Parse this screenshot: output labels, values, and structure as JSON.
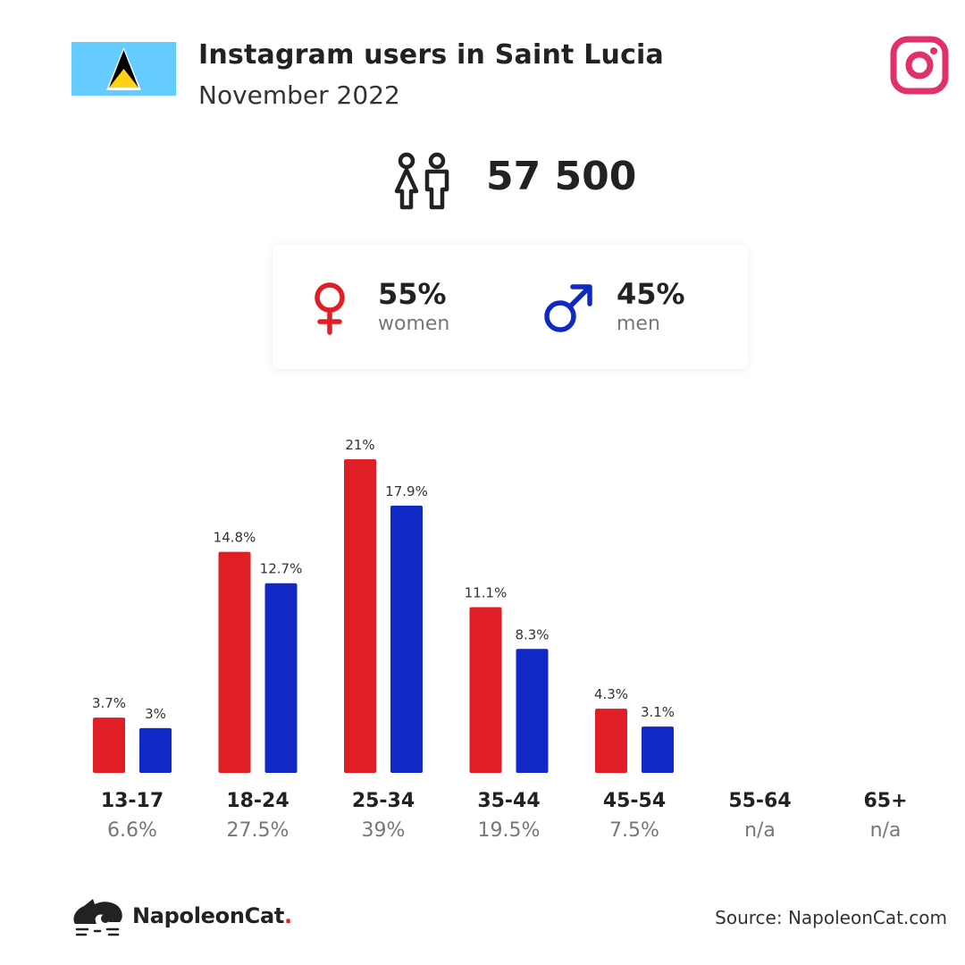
{
  "header": {
    "title": "Instagram users in Saint Lucia",
    "subtitle": "November 2022"
  },
  "total": "57 500",
  "gender": {
    "women_pct": "55%",
    "women_label": "women",
    "men_pct": "45%",
    "men_label": "men"
  },
  "colors": {
    "women": "#e01e26",
    "men": "#1029c4",
    "instagram": "#e1306c"
  },
  "chart_data": {
    "type": "bar",
    "categories": [
      "13-17",
      "18-24",
      "25-34",
      "35-44",
      "45-54",
      "55-64",
      "65+"
    ],
    "category_totals": [
      "6.6%",
      "27.5%",
      "39%",
      "19.5%",
      "7.5%",
      "n/a",
      "n/a"
    ],
    "series": [
      {
        "values": [
          3.7,
          14.8,
          21,
          11.1,
          4.3,
          null,
          null
        ],
        "labels": [
          "3.7%",
          "14.8%",
          "21%",
          "11.1%",
          "4.3%",
          "",
          ""
        ]
      },
      {
        "values": [
          3,
          12.7,
          17.9,
          8.3,
          3.1,
          null,
          null
        ],
        "labels": [
          "3%",
          "12.7%",
          "17.9%",
          "8.3%",
          "3.1%",
          "",
          ""
        ]
      }
    ],
    "ylim": [
      0,
      21
    ]
  },
  "footer": {
    "brand": "NapoleonCat",
    "brand_dot": ".",
    "source": "Source: NapoleonCat.com"
  }
}
